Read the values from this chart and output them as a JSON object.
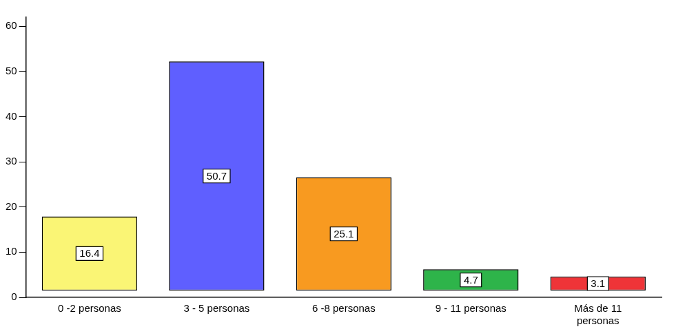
{
  "chart_data": {
    "type": "bar",
    "categories": [
      "0 -2 personas",
      "3 - 5 personas",
      "6 -8 personas",
      "9 - 11 personas",
      "Más de 11 personas"
    ],
    "values": [
      16.4,
      50.7,
      25.1,
      4.7,
      3.1
    ],
    "base": [
      1.5,
      1.5,
      1.5,
      1.5,
      1.5
    ],
    "colors": [
      "#faf575",
      "#5f5fff",
      "#f89a20",
      "#2eb44a",
      "#ef3438"
    ],
    "ylim": [
      0,
      62
    ],
    "yticks": [
      0,
      10,
      20,
      30,
      40,
      50,
      60
    ],
    "grid": false,
    "legend": false,
    "data_labels": true
  }
}
